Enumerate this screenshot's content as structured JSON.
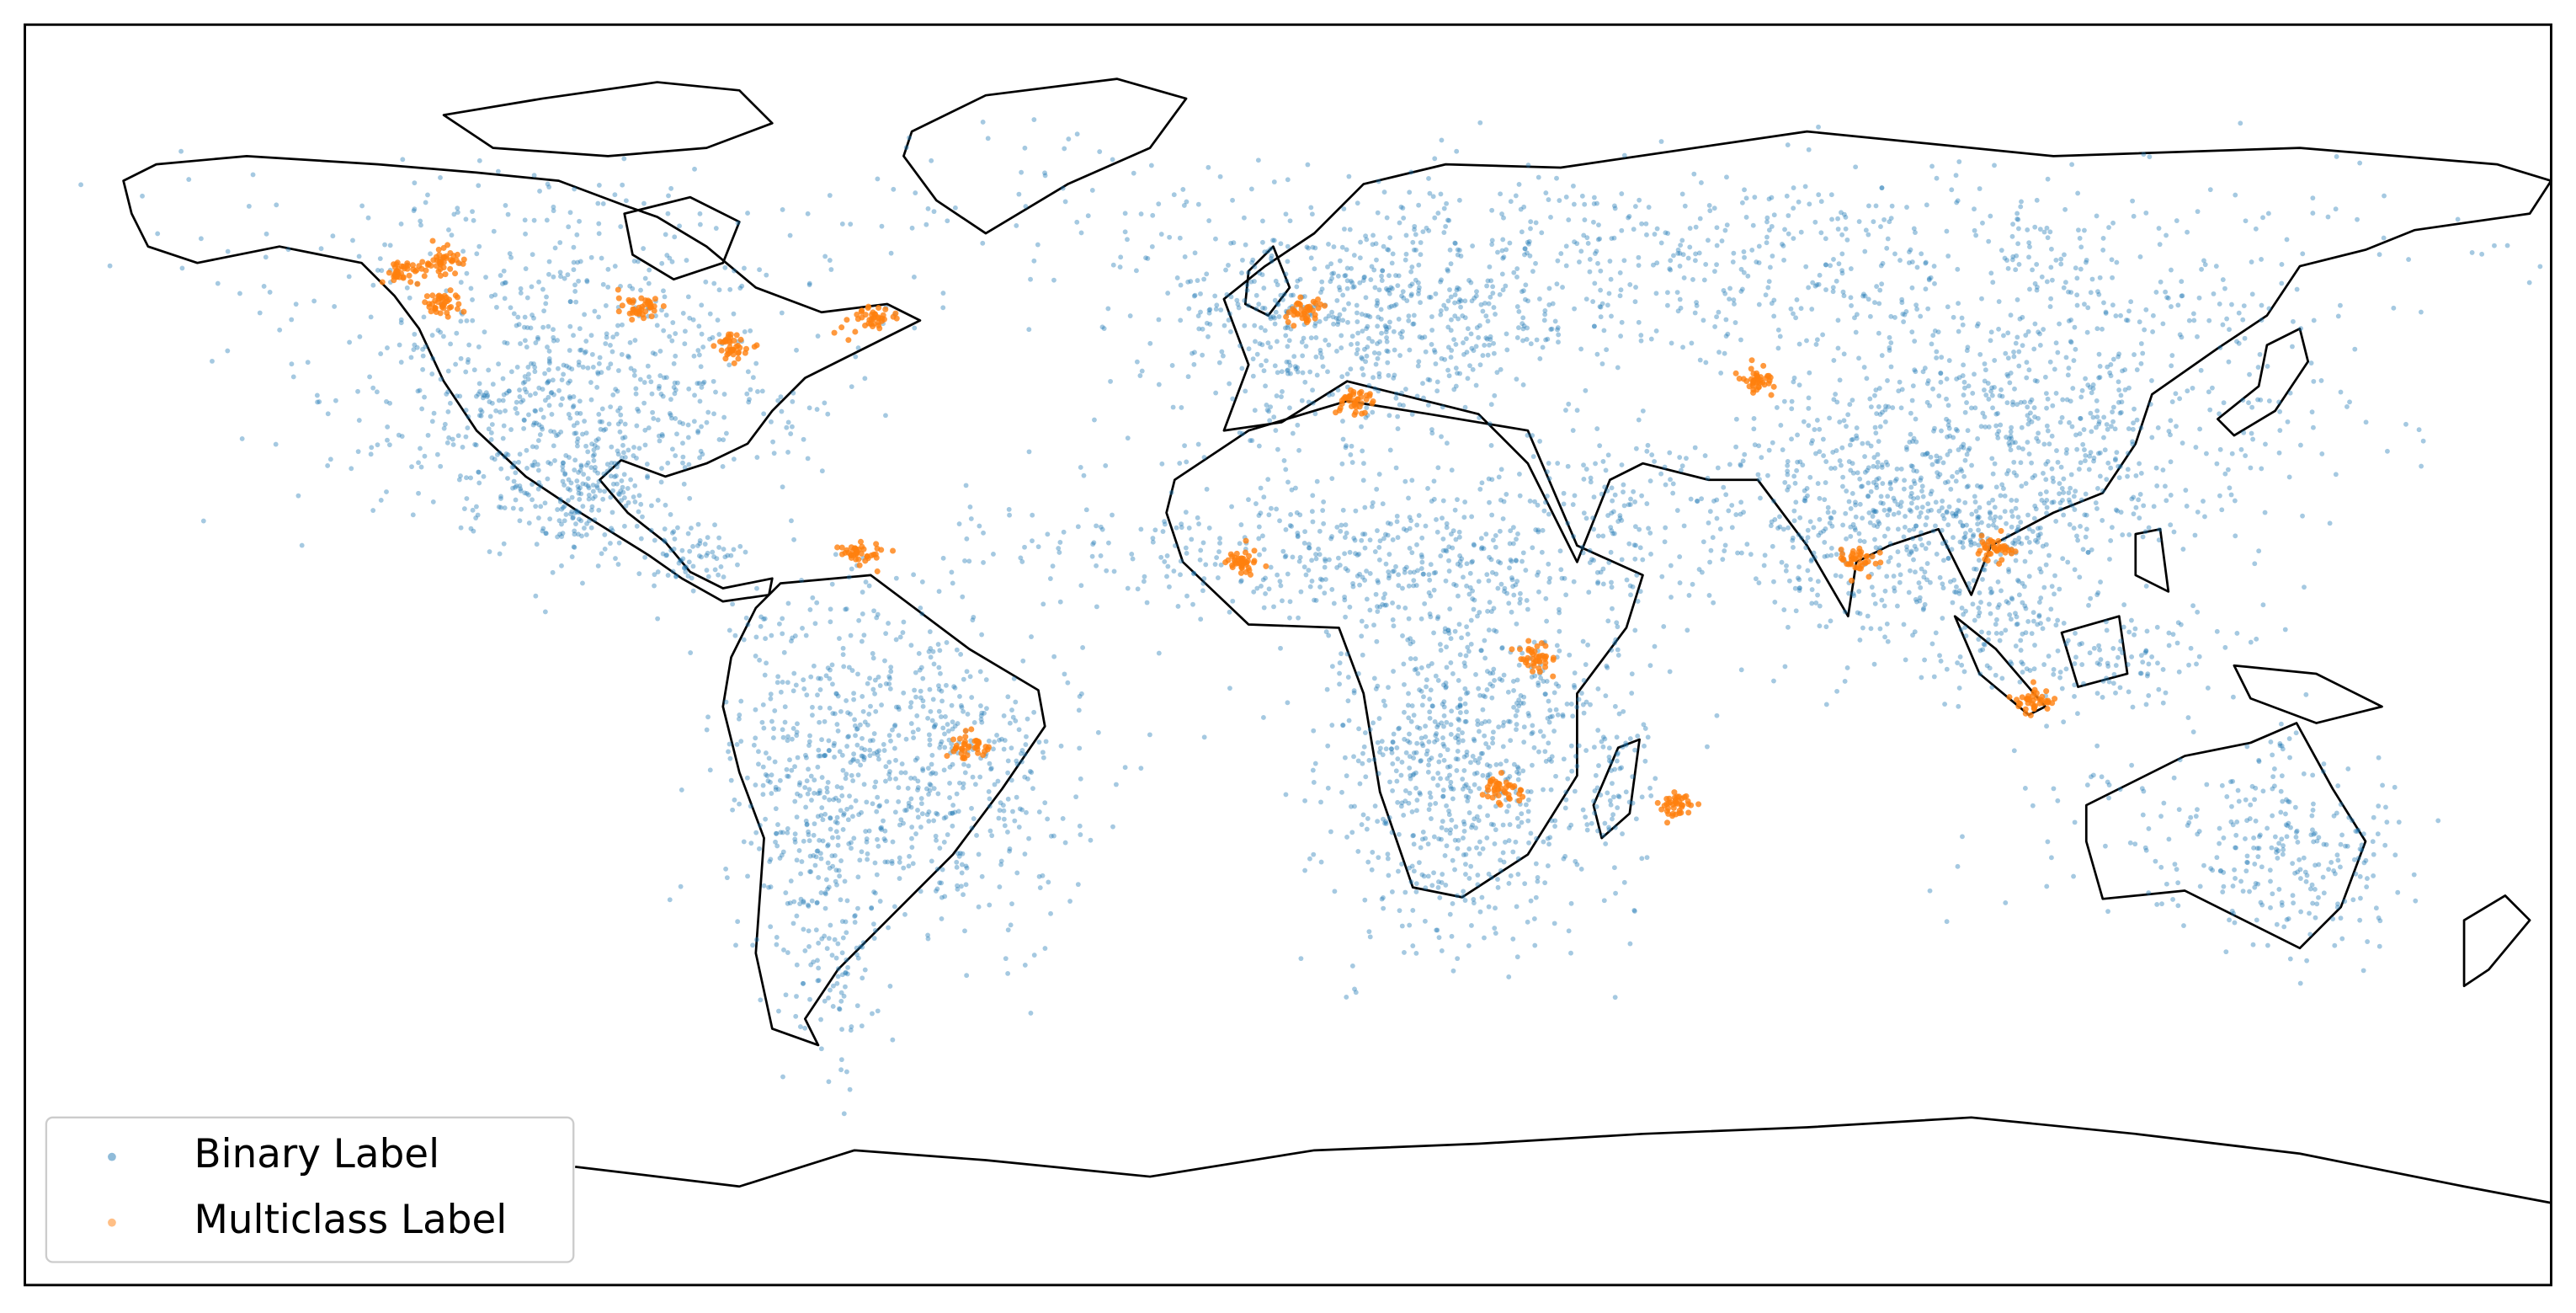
{
  "legend": {
    "items": [
      {
        "label": "Binary Label",
        "color": "#1f77b4"
      },
      {
        "label": "Multiclass Label",
        "color": "#ff7f0e"
      }
    ]
  }
}
